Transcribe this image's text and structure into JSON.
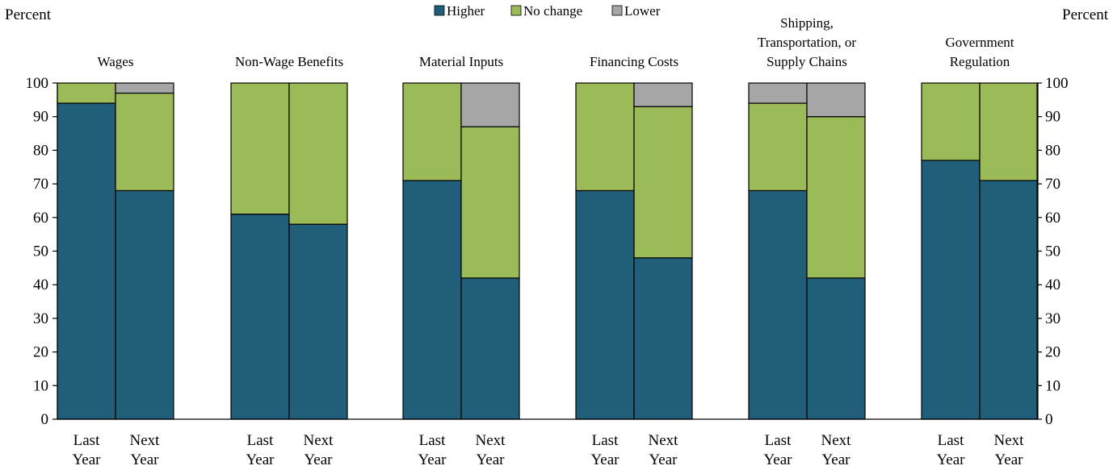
{
  "chart_data": {
    "type": "bar",
    "stacked": true,
    "y_label_left": "Percent",
    "y_label_right": "Percent",
    "ylim": [
      0,
      100
    ],
    "yticks": [
      0,
      10,
      20,
      30,
      40,
      50,
      60,
      70,
      80,
      90,
      100
    ],
    "grid": false,
    "legend_position": "top-center",
    "bar_labels": [
      [
        "Last",
        "Year"
      ],
      [
        "Next",
        "Year"
      ]
    ],
    "colors": {
      "Higher": "#215e79",
      "No change": "#9bbb59",
      "Lower": "#a6a6a6"
    },
    "series_names": [
      "Higher",
      "No change",
      "Lower"
    ],
    "groups": [
      {
        "title": [
          "Wages"
        ],
        "bars": [
          {
            "higher": 94,
            "no_change": 6,
            "lower": 0
          },
          {
            "higher": 68,
            "no_change": 29,
            "lower": 3
          }
        ]
      },
      {
        "title": [
          "Non-Wage Benefits"
        ],
        "bars": [
          {
            "higher": 61,
            "no_change": 39,
            "lower": 0
          },
          {
            "higher": 58,
            "no_change": 42,
            "lower": 0
          }
        ]
      },
      {
        "title": [
          "Material Inputs"
        ],
        "bars": [
          {
            "higher": 71,
            "no_change": 29,
            "lower": 0
          },
          {
            "higher": 42,
            "no_change": 45,
            "lower": 13
          }
        ]
      },
      {
        "title": [
          "Financing Costs"
        ],
        "bars": [
          {
            "higher": 68,
            "no_change": 32,
            "lower": 0
          },
          {
            "higher": 48,
            "no_change": 45,
            "lower": 7
          }
        ]
      },
      {
        "title": [
          "Shipping,",
          "Transportation, or",
          "Supply Chains"
        ],
        "bars": [
          {
            "higher": 68,
            "no_change": 26,
            "lower": 6
          },
          {
            "higher": 42,
            "no_change": 48,
            "lower": 10
          }
        ]
      },
      {
        "title": [
          "Government",
          "Regulation"
        ],
        "bars": [
          {
            "higher": 77,
            "no_change": 23,
            "lower": 0
          },
          {
            "higher": 71,
            "no_change": 29,
            "lower": 0
          }
        ]
      }
    ]
  }
}
